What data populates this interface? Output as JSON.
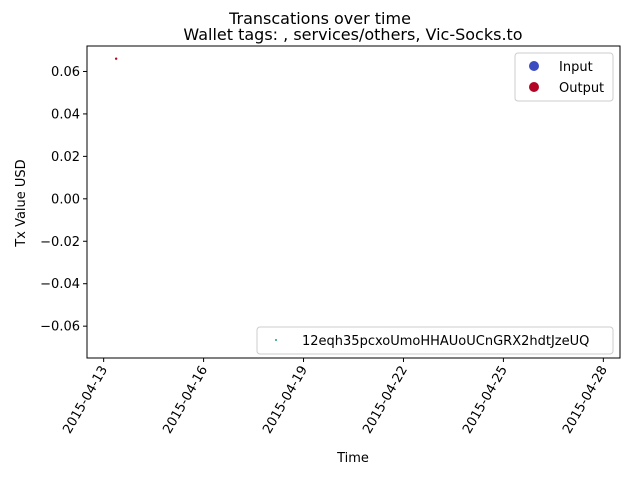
{
  "chart_data": {
    "type": "scatter",
    "title": "Transcations over time",
    "subtitle": "Wallet tags: , services/others, Vic-Socks.to",
    "xlabel": "Time",
    "ylabel": "Tx Value USD",
    "xlim": [
      "2015-04-12 12:00",
      "2015-04-28 12:00"
    ],
    "ylim": [
      -0.075,
      0.072
    ],
    "x_ticks": [
      "2015-04-13",
      "2015-04-16",
      "2015-04-19",
      "2015-04-22",
      "2015-04-25",
      "2015-04-28"
    ],
    "y_ticks": [
      0.06,
      0.04,
      0.02,
      0.0,
      -0.02,
      -0.04,
      -0.06
    ],
    "y_tick_labels": [
      "0.06",
      "0.04",
      "0.02",
      "0.00",
      "−0.02",
      "−0.04",
      "−0.06"
    ],
    "grid": false,
    "legend_top_right": {
      "placement": "top-right",
      "entries": [
        {
          "label": "Input",
          "color": "#3b4cc0"
        },
        {
          "label": "Output",
          "color": "#b40426"
        }
      ]
    },
    "legend_bottom_right": {
      "placement": "lower-right",
      "entries": [
        {
          "label": "12eqh35pcxoUmoHHAUoUCnGRX2hdtJzeUQ",
          "color": "#1f9e89"
        }
      ]
    },
    "points": [
      {
        "x": "2015-04-13 09:00",
        "y": 0.066,
        "type": "Output",
        "color": "#b40426"
      }
    ]
  }
}
